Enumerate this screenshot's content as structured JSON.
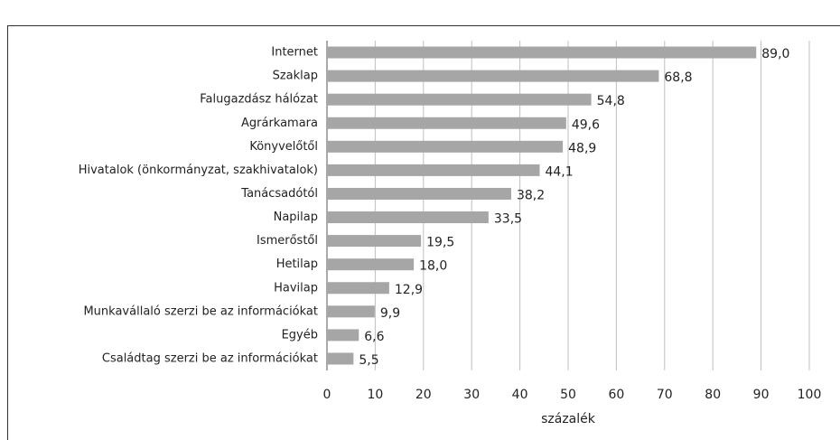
{
  "chart_data": {
    "type": "bar",
    "orientation": "horizontal",
    "categories": [
      "Internet",
      "Szaklap",
      "Falugazdász hálózat",
      "Agrárkamara",
      "Könyvelőtől",
      "Hivatalok (önkormányzat, szakhivatalok)",
      "Tanácsadótól",
      "Napilap",
      "Ismerőstől",
      "Hetilap",
      "Havilap",
      "Munkavállaló szerzi be az információkat",
      "Egyéb",
      "Családtag szerzi be az információkat"
    ],
    "values": [
      89.0,
      68.8,
      54.8,
      49.6,
      48.9,
      44.1,
      38.2,
      33.5,
      19.5,
      18.0,
      12.9,
      9.9,
      6.6,
      5.5
    ],
    "value_labels": [
      "89,0",
      "68,8",
      "54,8",
      "49,6",
      "48,9",
      "44,1",
      "38,2",
      "33,5",
      "19,5",
      "18,0",
      "12,9",
      "9,9",
      "6,6",
      "5,5"
    ],
    "color": "#a6a6a6",
    "xlabel": "százalék",
    "xlim": [
      0,
      100
    ],
    "xticks": [
      0,
      10,
      20,
      30,
      40,
      50,
      60,
      70,
      80,
      90,
      100
    ],
    "grid": true
  }
}
